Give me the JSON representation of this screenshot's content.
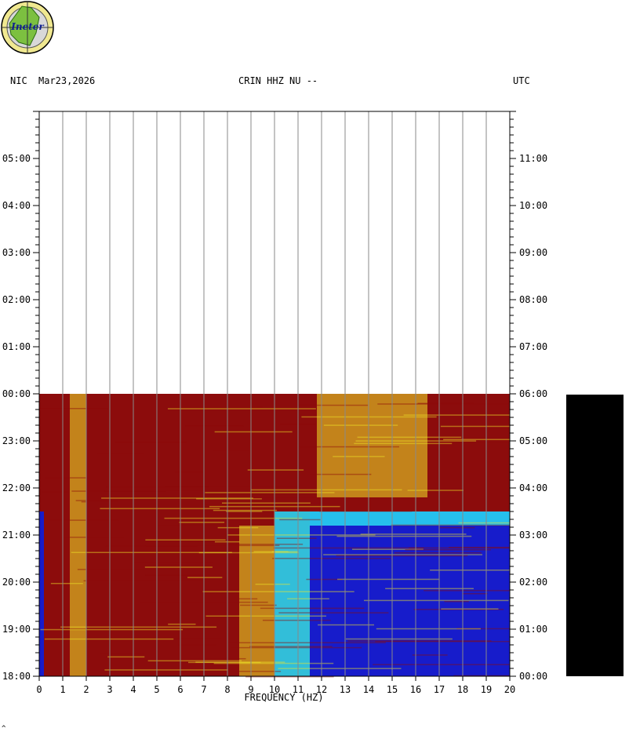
{
  "header": {
    "network": "NIC",
    "date": "Mar23,2026",
    "station": "CRIN HHZ NU --",
    "timezone": "UTC"
  },
  "logo": {
    "text": "Ineter"
  },
  "footer_mark": "^",
  "colors": {
    "low_noise": "#0a1ee0",
    "mid_noise": "#28d2f0",
    "high_noise": "#f0e628",
    "peak": "#8c0c0c",
    "sidebar": "#000000"
  },
  "chart_data": {
    "type": "heatmap",
    "title": "CRIN HHZ NU --",
    "xlabel": "FREQUENCY (HZ)",
    "xlim": [
      0,
      20
    ],
    "x_ticks": [
      "0",
      "1",
      "2",
      "3",
      "4",
      "5",
      "6",
      "7",
      "8",
      "9",
      "10",
      "11",
      "12",
      "13",
      "14",
      "15",
      "16",
      "17",
      "18",
      "19",
      "20"
    ],
    "left_time_ticks": [
      "18:00",
      "19:00",
      "20:00",
      "21:00",
      "22:00",
      "23:00",
      "00:00",
      "01:00",
      "02:00",
      "03:00",
      "04:00",
      "05:00"
    ],
    "right_time_ticks": [
      "00:00",
      "01:00",
      "02:00",
      "03:00",
      "04:00",
      "05:00",
      "06:00",
      "07:00",
      "08:00",
      "09:00",
      "10:00",
      "11:00"
    ],
    "time_range_hours": 12,
    "data_end_hour": 6,
    "bands": [
      {
        "hour_start": 0,
        "hour_end": 3.5,
        "freq_start": 0,
        "freq_end": 0.2,
        "level": "low"
      },
      {
        "hour_start": 0,
        "hour_end": 6,
        "freq_start": 0.2,
        "freq_end": 1.3,
        "level": "peak"
      },
      {
        "hour_start": 0,
        "hour_end": 6,
        "freq_start": 1.3,
        "freq_end": 2.0,
        "level": "high"
      },
      {
        "hour_start": 0,
        "hour_end": 6,
        "freq_start": 2.0,
        "freq_end": 8.5,
        "level": "peak"
      },
      {
        "hour_start": 0,
        "hour_end": 3.2,
        "freq_start": 8.5,
        "freq_end": 10,
        "level": "high"
      },
      {
        "hour_start": 0,
        "hour_end": 3.5,
        "freq_start": 10,
        "freq_end": 11.5,
        "level": "mid"
      },
      {
        "hour_start": 0,
        "hour_end": 3.5,
        "freq_start": 11.5,
        "freq_end": 20,
        "level": "low"
      },
      {
        "hour_start": 3.2,
        "hour_end": 3.5,
        "freq_start": 11.5,
        "freq_end": 20,
        "level": "mid"
      },
      {
        "hour_start": 3.5,
        "hour_end": 6,
        "freq_start": 8.0,
        "freq_end": 20,
        "level": "peak"
      },
      {
        "hour_start": 3.8,
        "hour_end": 6,
        "freq_start": 11.8,
        "freq_end": 16.5,
        "level": "high"
      }
    ]
  }
}
